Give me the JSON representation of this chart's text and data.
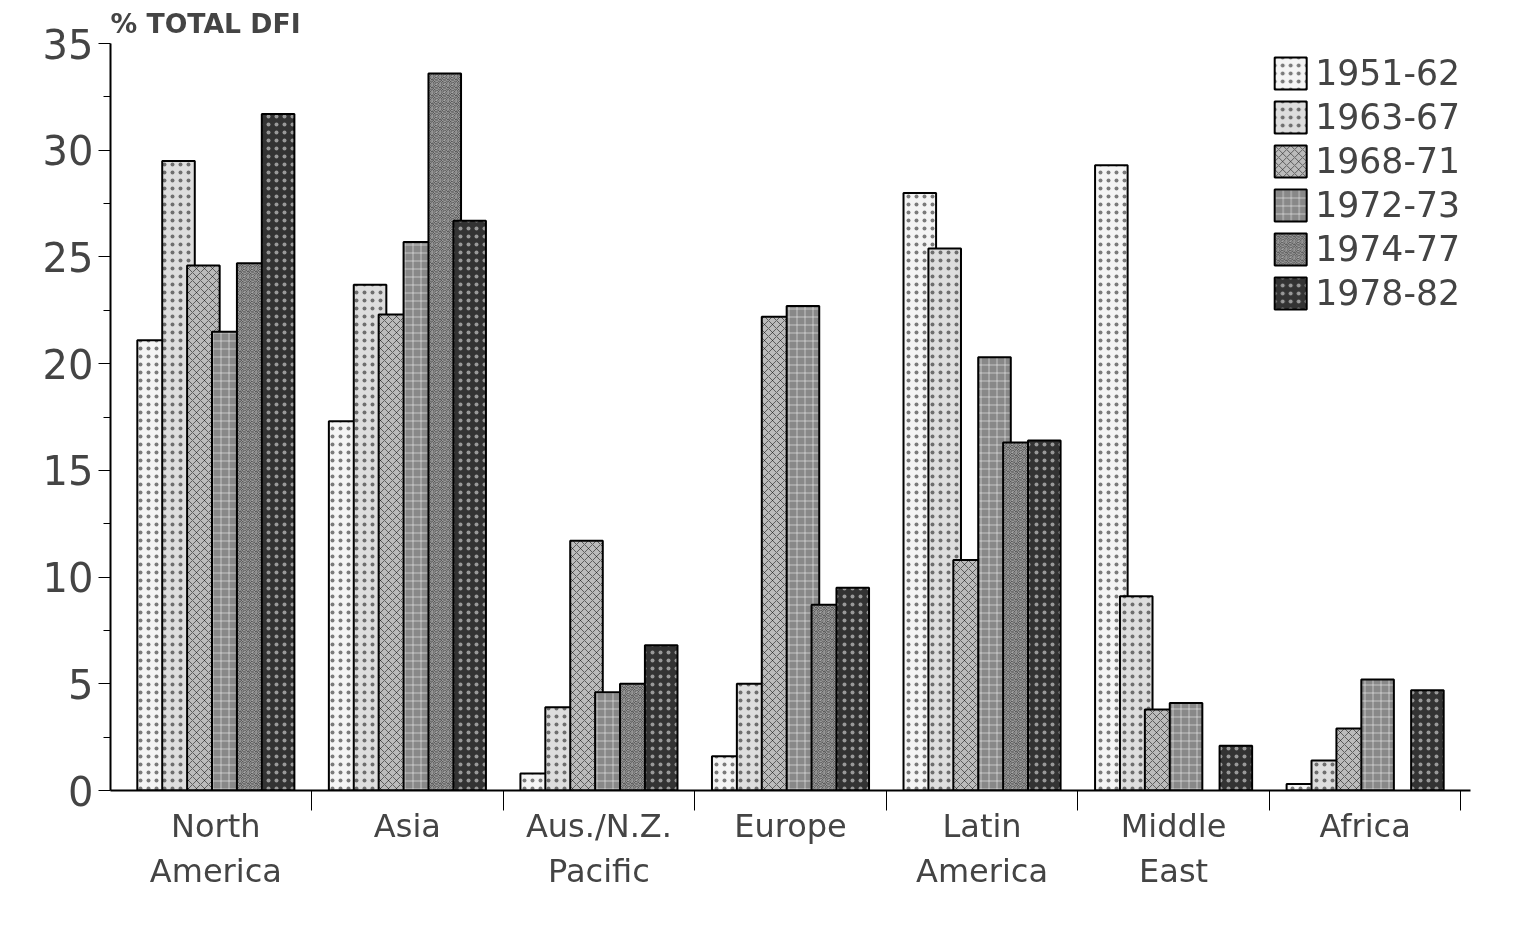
{
  "chart_data": {
    "type": "bar",
    "ylabel": "% TOTAL DFI",
    "categories": [
      "North\nAmerica",
      "Asia",
      "Aus./N.Z.\nPacific",
      "Europe",
      "Latin\nAmerica",
      "Middle\nEast",
      "Africa"
    ],
    "series": [
      {
        "name": "1951-62",
        "color": "#f4f4f4",
        "values": [
          21.1,
          17.3,
          0.8,
          1.6,
          28.0,
          29.3,
          0.3
        ]
      },
      {
        "name": "1963-67",
        "color": "#dddddd",
        "values": [
          29.5,
          23.7,
          3.9,
          5.0,
          25.4,
          9.1,
          1.4
        ]
      },
      {
        "name": "1968-71",
        "color": "#bbbbbb",
        "values": [
          24.6,
          22.3,
          11.7,
          22.2,
          10.8,
          3.8,
          2.9
        ]
      },
      {
        "name": "1972-73",
        "color": "#888888",
        "values": [
          21.5,
          25.7,
          4.6,
          22.7,
          20.3,
          4.1,
          5.2
        ]
      },
      {
        "name": "1974-77",
        "color": "#555555",
        "values": [
          24.7,
          33.6,
          5.0,
          8.7,
          16.3,
          null,
          null
        ]
      },
      {
        "name": "1978-82",
        "color": "#333333",
        "values": [
          31.7,
          26.7,
          6.8,
          9.5,
          16.4,
          2.1,
          4.7
        ]
      }
    ],
    "ylim": [
      0,
      35
    ],
    "yticks": [
      0,
      5,
      10,
      15,
      20,
      25,
      30,
      35
    ],
    "grid": false,
    "legend": "top right"
  }
}
